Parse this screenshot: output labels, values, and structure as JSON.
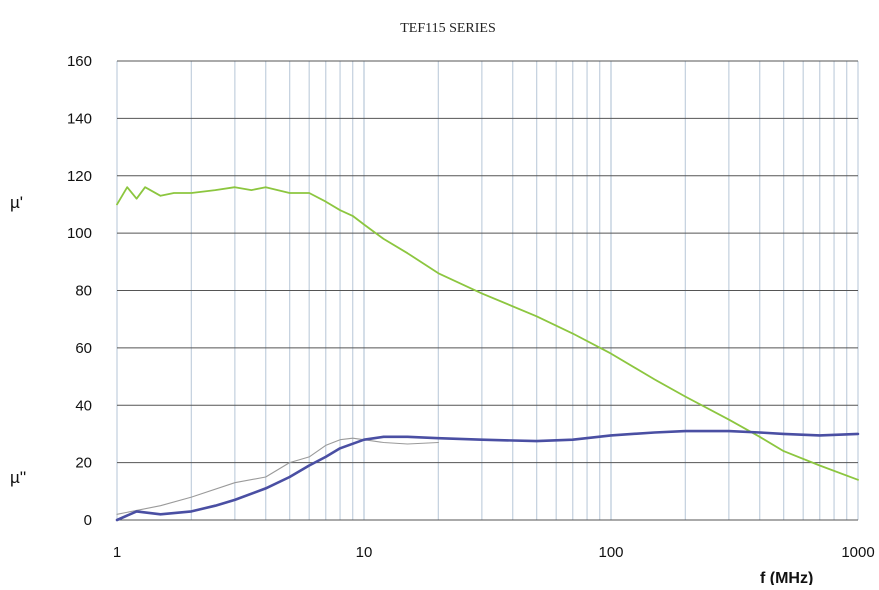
{
  "chart_data": {
    "type": "line",
    "title": "TEF115 SERIES",
    "xlabel": "f (MHz)",
    "ylabel": "",
    "x_scale": "log",
    "xlim": [
      1,
      1000
    ],
    "ylim": [
      0,
      160
    ],
    "grid": true,
    "legend": "none",
    "x_ticks": [
      "1",
      "10",
      "100",
      "1000"
    ],
    "y_ticks": [
      "0",
      "20",
      "40",
      "60",
      "80",
      "100",
      "120",
      "140",
      "160"
    ],
    "series_labels": [
      "µ'",
      "µ''"
    ],
    "colors": {
      "mu_prime": "#8cc63f",
      "mu_double_prime": "#4a4fa3",
      "mu_double_prime_faint": "#9a9a9a",
      "grid_vertical": "#c7d3e0",
      "grid_horizontal": "#555555"
    },
    "series": [
      {
        "name": "µ'",
        "x": [
          1,
          1.1,
          1.2,
          1.3,
          1.5,
          1.7,
          2,
          2.5,
          3,
          3.5,
          4,
          5,
          6,
          7,
          8,
          9,
          10,
          12,
          15,
          20,
          30,
          50,
          70,
          100,
          150,
          200,
          300,
          400,
          500,
          700,
          1000
        ],
        "y": [
          110,
          116,
          112,
          116,
          113,
          114,
          114,
          115,
          116,
          115,
          116,
          114,
          114,
          111,
          108,
          106,
          103,
          98,
          93,
          86,
          79,
          71,
          65,
          58,
          49,
          43,
          35,
          29,
          24,
          19,
          14
        ]
      },
      {
        "name": "µ''",
        "x": [
          1,
          1.2,
          1.5,
          2,
          2.5,
          3,
          4,
          5,
          6,
          7,
          8,
          10,
          12,
          15,
          20,
          30,
          50,
          70,
          100,
          150,
          200,
          300,
          400,
          500,
          700,
          1000
        ],
        "y": [
          0,
          3,
          2,
          3,
          5,
          7,
          11,
          15,
          19,
          22,
          25,
          28,
          29,
          29,
          28.5,
          28,
          27.5,
          28,
          29.5,
          30.5,
          31,
          31,
          30.5,
          30,
          29.5,
          30
        ]
      },
      {
        "x": [
          1,
          1.5,
          2,
          3,
          4,
          5,
          6,
          7,
          8,
          9,
          10,
          12,
          15,
          20
        ],
        "y": [
          2,
          5,
          8,
          13,
          15,
          20,
          22,
          26,
          28,
          28.5,
          28,
          27,
          26.5,
          27
        ]
      }
    ]
  }
}
